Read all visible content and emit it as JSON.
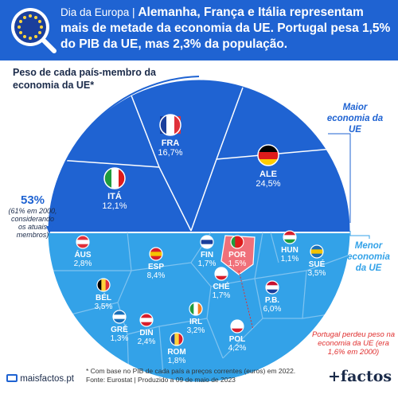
{
  "header": {
    "kicker": "Dia da Europa |",
    "title": "Alemanha, França e Itália representam mais de metade da economia da UE. Portugal pesa 1,5% do PIB da UE, mas 2,3% da população."
  },
  "chart_data": {
    "type": "voronoi-treemap",
    "title": "Peso de cada país-membro da economia da UE*",
    "unit": "%",
    "groups": [
      {
        "name": "Maior economia da UE",
        "share": 53,
        "share_label": "53%",
        "share_note": "(61% em 2000, considerando os atuais membros)"
      },
      {
        "name": "Menor economia da UE"
      }
    ],
    "series": [
      {
        "code": "FRA",
        "value": 16.7,
        "label": "16,7%"
      },
      {
        "code": "ALE",
        "value": 24.5,
        "label": "24,5%"
      },
      {
        "code": "ITÁ",
        "value": 12.1,
        "label": "12,1%"
      },
      {
        "code": "ÁUS",
        "value": 2.8,
        "label": "2,8%"
      },
      {
        "code": "ESP",
        "value": 8.4,
        "label": "8,4%"
      },
      {
        "code": "FIN",
        "value": 1.7,
        "label": "1,7%"
      },
      {
        "code": "POR",
        "value": 1.5,
        "label": "1,5%"
      },
      {
        "code": "HUN",
        "value": 1.1,
        "label": "1,1%"
      },
      {
        "code": "SUÉ",
        "value": 3.5,
        "label": "3,5%"
      },
      {
        "code": "BÉL",
        "value": 3.5,
        "label": "3,5%"
      },
      {
        "code": "CHÉ",
        "value": 1.7,
        "label": "1,7%"
      },
      {
        "code": "P.B.",
        "value": 6.0,
        "label": "6,0%"
      },
      {
        "code": "GRÉ",
        "value": 1.3,
        "label": "1,3%"
      },
      {
        "code": "DIN",
        "value": 2.4,
        "label": "2,4%"
      },
      {
        "code": "IRL",
        "value": 3.2,
        "label": "3,2%"
      },
      {
        "code": "ROM",
        "value": 1.8,
        "label": "1,8%"
      },
      {
        "code": "POL",
        "value": 4.2,
        "label": "4,2%"
      }
    ],
    "annotation": "Portugal perdeu peso na economia da UE (era 1,6% em 2000)",
    "colors": {
      "big": "#1f63d2",
      "small": "#33a2e8",
      "highlight": "#f0707a",
      "red": "#e03030"
    }
  },
  "footnote": {
    "line1": "* Com base no PIB de cada país a preços correntes (euros) em 2022.",
    "line2": "Fonte: Eurostat | Produzido a 09 de maio de 2023"
  },
  "site": "maisfactos.pt",
  "brand": "+factos"
}
